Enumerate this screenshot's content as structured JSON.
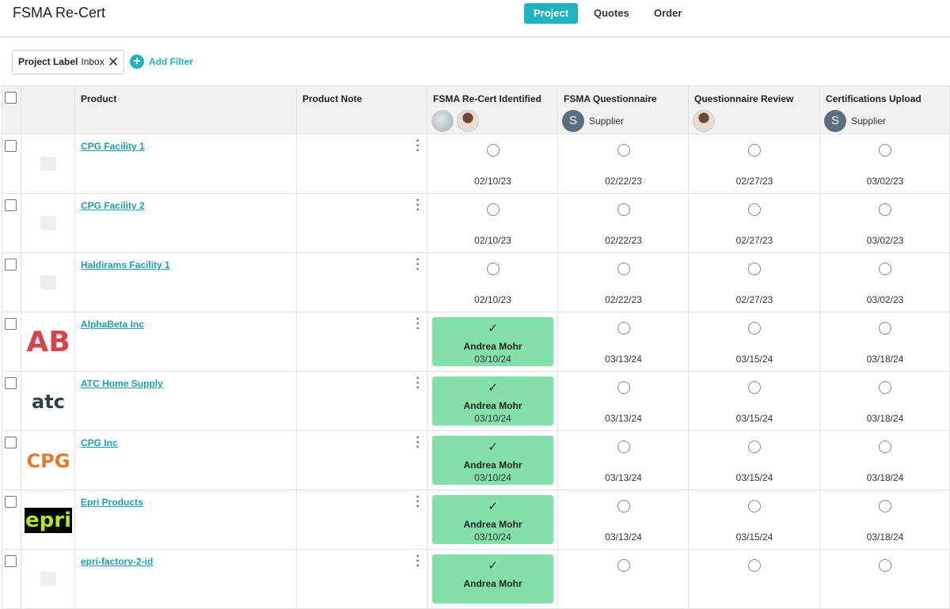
{
  "header": {
    "title": "FSMA Re-Cert",
    "tabs": [
      {
        "label": "Project",
        "active": true
      },
      {
        "label": "Quotes",
        "active": false
      },
      {
        "label": "Order",
        "active": false
      }
    ]
  },
  "filters": {
    "chips": [
      {
        "label": "Project Label",
        "value": "Inbox"
      }
    ],
    "add_filter": "Add Filter"
  },
  "table": {
    "columns": [
      {
        "label": "Product"
      },
      {
        "label": "Product Note"
      },
      {
        "label": "FSMA Re-Cert Identified",
        "avatars": 2
      },
      {
        "label": "FSMA Questionnaire",
        "assignee": {
          "initial": "S",
          "name": "Supplier"
        }
      },
      {
        "label": "Questionnaire Review",
        "avatars": 1
      },
      {
        "label": "Certifications Upload",
        "assignee": {
          "initial": "S",
          "name": "Supplier"
        }
      }
    ],
    "rows": [
      {
        "product": "CPG Facility 1",
        "logo": null,
        "stages": [
          {
            "status": "pending",
            "date": "02/10/23"
          },
          {
            "status": "pending",
            "date": "02/22/23"
          },
          {
            "status": "pending",
            "date": "02/27/23"
          },
          {
            "status": "pending",
            "date": "03/02/23"
          }
        ]
      },
      {
        "product": "CPG Facility 2",
        "logo": null,
        "stages": [
          {
            "status": "pending",
            "date": "02/10/23"
          },
          {
            "status": "pending",
            "date": "02/22/23"
          },
          {
            "status": "pending",
            "date": "02/27/23"
          },
          {
            "status": "pending",
            "date": "03/02/23"
          }
        ]
      },
      {
        "product": "Haldirams Facility 1",
        "logo": null,
        "stages": [
          {
            "status": "pending",
            "date": "02/10/23"
          },
          {
            "status": "pending",
            "date": "02/22/23"
          },
          {
            "status": "pending",
            "date": "02/27/23"
          },
          {
            "status": "pending",
            "date": "03/02/23"
          }
        ]
      },
      {
        "product": "AlphaBeta Inc",
        "logo": {
          "text": "AB",
          "color": "#d9444b"
        },
        "stages": [
          {
            "status": "done",
            "assignee": "Andrea Mohr",
            "date": "03/10/24"
          },
          {
            "status": "pending",
            "date": "03/13/24"
          },
          {
            "status": "pending",
            "date": "03/15/24"
          },
          {
            "status": "pending",
            "date": "03/18/24"
          }
        ]
      },
      {
        "product": "ATC Home Supply",
        "logo": {
          "text": "atc",
          "color": "#2d3e50"
        },
        "stages": [
          {
            "status": "done",
            "assignee": "Andrea Mohr",
            "date": "03/10/24"
          },
          {
            "status": "pending",
            "date": "03/13/24"
          },
          {
            "status": "pending",
            "date": "03/15/24"
          },
          {
            "status": "pending",
            "date": "03/18/24"
          }
        ]
      },
      {
        "product": "CPG Inc",
        "logo": {
          "text": "CPG",
          "color": "#e8782a"
        },
        "stages": [
          {
            "status": "done",
            "assignee": "Andrea Mohr",
            "date": "03/10/24"
          },
          {
            "status": "pending",
            "date": "03/13/24"
          },
          {
            "status": "pending",
            "date": "03/15/24"
          },
          {
            "status": "pending",
            "date": "03/18/24"
          }
        ]
      },
      {
        "product": "Epri Products",
        "logo": {
          "text": "epri",
          "color": "#b5e61d",
          "background": "#000000"
        },
        "stages": [
          {
            "status": "done",
            "assignee": "Andrea Mohr",
            "date": "03/10/24"
          },
          {
            "status": "pending",
            "date": "03/13/24"
          },
          {
            "status": "pending",
            "date": "03/15/24"
          },
          {
            "status": "pending",
            "date": "03/18/24"
          }
        ]
      },
      {
        "product": "epri-factory-2-id",
        "logo": null,
        "stages": [
          {
            "status": "done",
            "assignee": "Andrea Mohr",
            "date": null
          },
          {
            "status": "pending",
            "date": null
          },
          {
            "status": "pending",
            "date": null
          },
          {
            "status": "pending",
            "date": null
          }
        ]
      }
    ]
  }
}
